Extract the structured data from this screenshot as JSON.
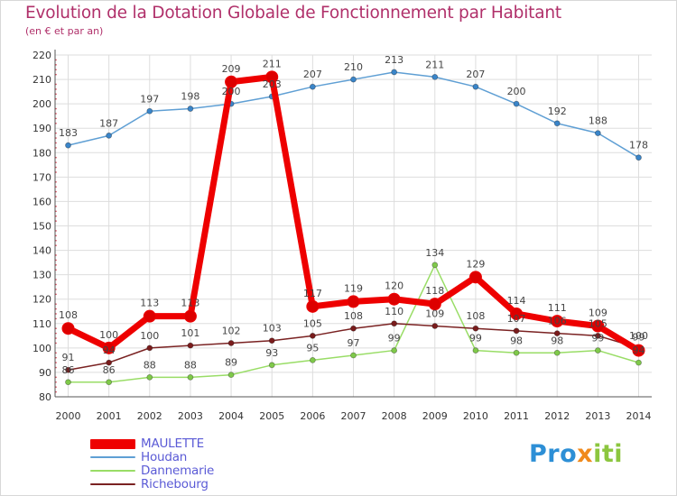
{
  "header": {
    "title": "Evolution de la Dotation Globale de Fonctionnement par Habitant",
    "subtitle": "(en € et par an)"
  },
  "logo": {
    "part1": "Pro",
    "part2": "x",
    "part3": "iti"
  },
  "colors": {
    "title": "#b0306a",
    "maulette": "#ee0000",
    "houdan": "#5f9fd4",
    "dannemarie": "#99dd66",
    "richebourg": "#7a2222",
    "grid": "#dddddd"
  },
  "chart_data": {
    "type": "line",
    "title": "Evolution de la Dotation Globale de Fonctionnement par Habitant",
    "subtitle": "(en € et par an)",
    "x": [
      "2000",
      "2001",
      "2002",
      "2003",
      "2004",
      "2005",
      "2006",
      "2007",
      "2008",
      "2009",
      "2010",
      "2011",
      "2012",
      "2013",
      "2014"
    ],
    "ylim": [
      80,
      220
    ],
    "yticks": [
      80,
      90,
      100,
      110,
      120,
      130,
      140,
      150,
      160,
      170,
      180,
      190,
      200,
      210,
      220
    ],
    "grid": true,
    "legend_position": "bottom-left",
    "series": [
      {
        "name": "Houdan",
        "color": "#5f9fd4",
        "marker": "#3a85c9",
        "values": [
          183,
          187,
          197,
          198,
          200,
          203,
          207,
          210,
          213,
          211,
          207,
          200,
          192,
          188,
          178
        ]
      },
      {
        "name": "Dannemarie",
        "color": "#99dd66",
        "marker": "#7fc94a",
        "values": [
          86,
          86,
          88,
          88,
          89,
          93,
          95,
          97,
          99,
          134,
          99,
          98,
          98,
          99,
          94
        ]
      },
      {
        "name": "Richebourg",
        "color": "#7a2222",
        "marker": "#7a1c1c",
        "values": [
          91,
          94,
          100,
          101,
          102,
          103,
          105,
          108,
          110,
          109,
          108,
          107,
          106,
          105,
          100
        ]
      },
      {
        "name": "MAULETTE",
        "color": "#ee0000",
        "marker": "#dd0000",
        "values": [
          108,
          100,
          113,
          113,
          209,
          211,
          117,
          119,
          120,
          118,
          129,
          114,
          111,
          109,
          99
        ]
      }
    ]
  }
}
